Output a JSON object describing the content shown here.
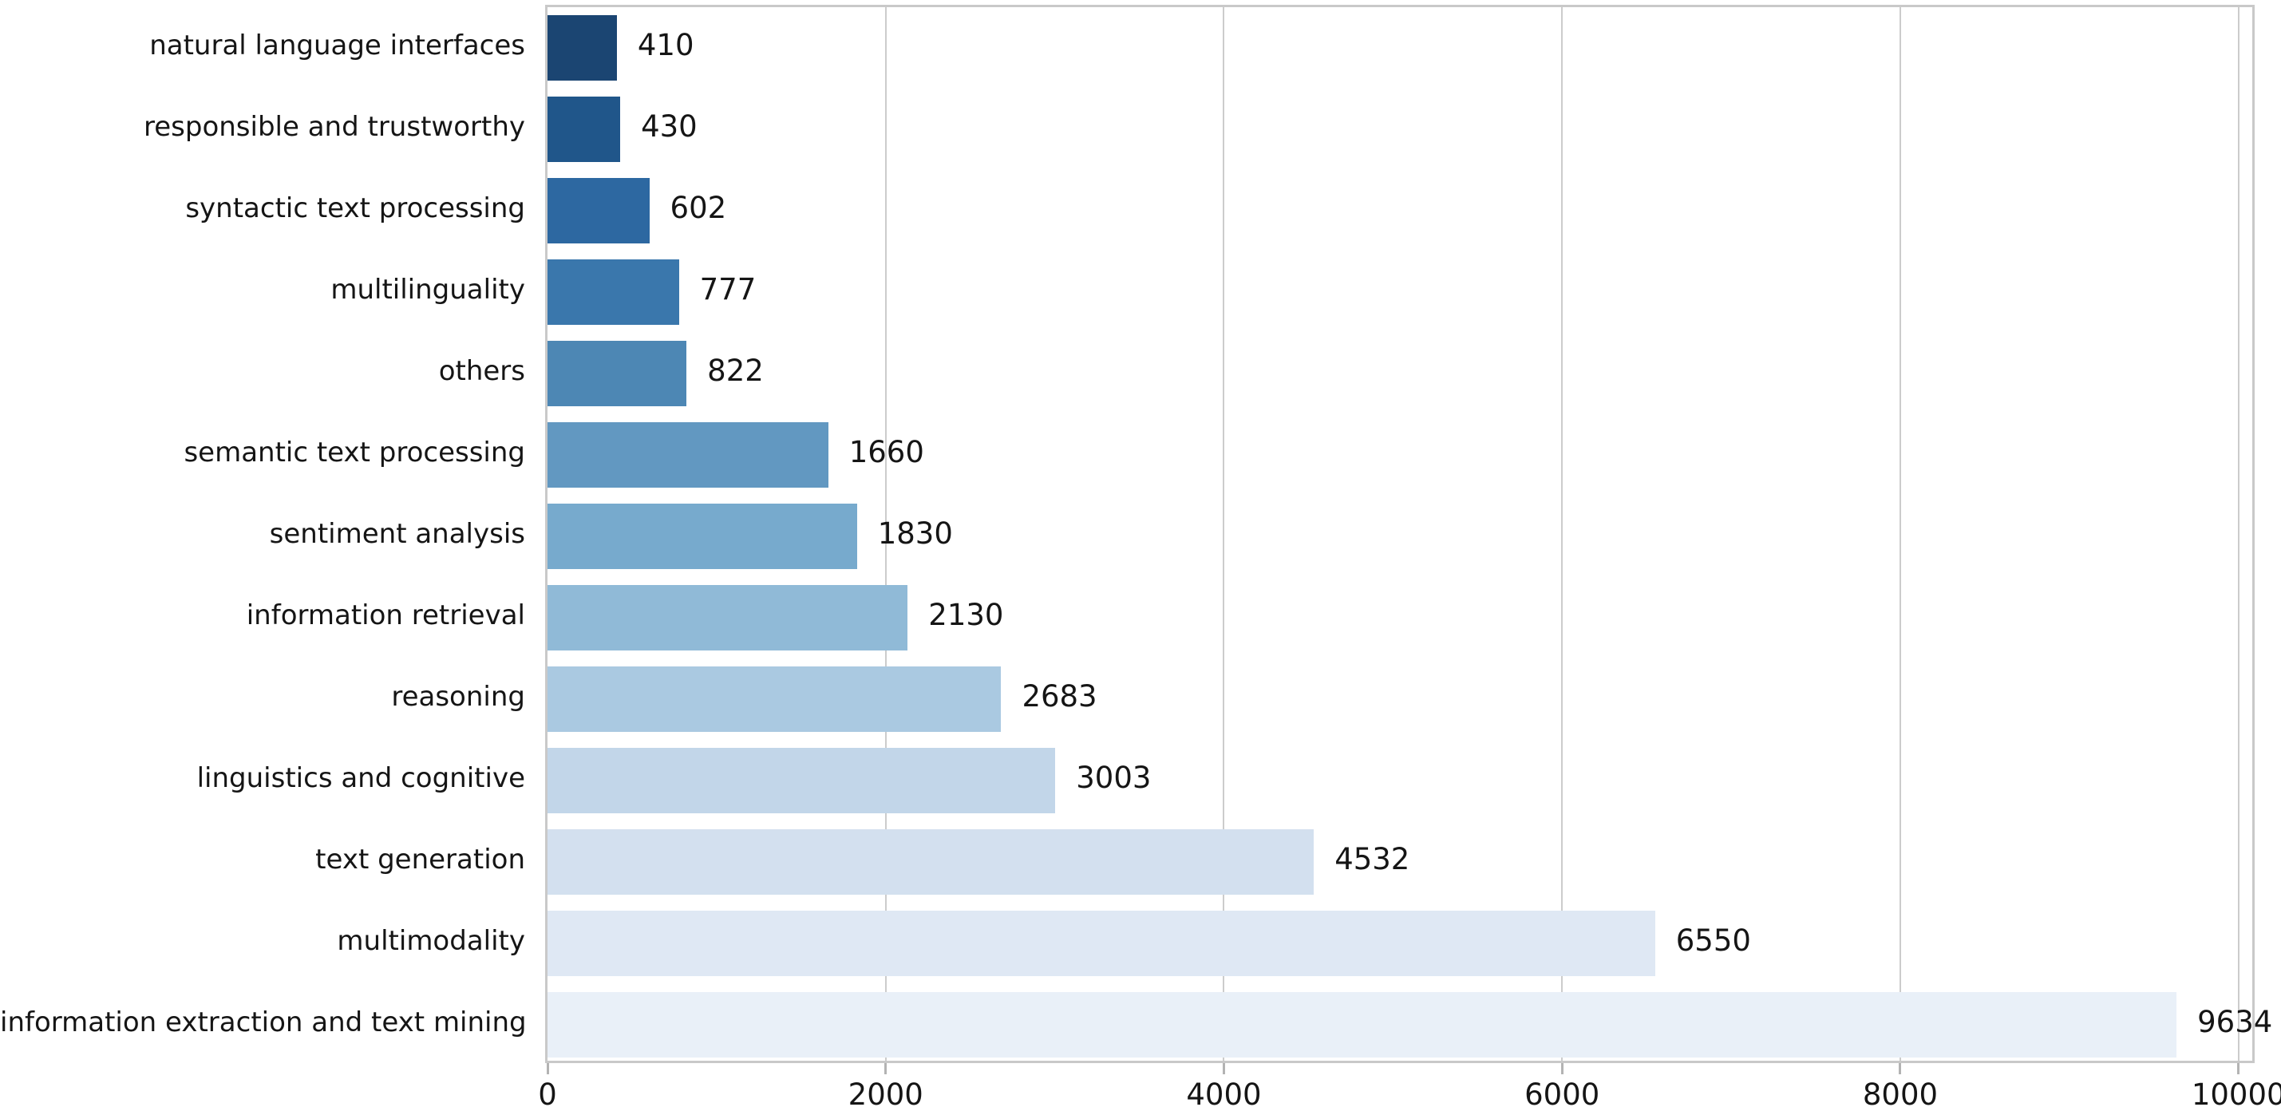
{
  "chart_data": {
    "type": "bar",
    "orientation": "horizontal",
    "title": "",
    "xlabel": "",
    "ylabel": "",
    "grid": true,
    "legend": null,
    "xlim": [
      0,
      10110
    ],
    "xticks": [
      0,
      2000,
      4000,
      6000,
      8000,
      10000
    ],
    "xtick_labels": [
      "0",
      "2000",
      "4000",
      "6000",
      "8000",
      "10000"
    ],
    "categories": [
      "natural language interfaces",
      "responsible and trustworthy",
      "syntactic text processing",
      "multilinguality",
      "others",
      "semantic text processing",
      "sentiment analysis",
      "information retrieval",
      "reasoning",
      "linguistics and cognitive",
      "text generation",
      "multimodality",
      "information extraction and text mining"
    ],
    "values": [
      410,
      430,
      602,
      777,
      822,
      1660,
      1830,
      2130,
      2683,
      3003,
      4532,
      6550,
      9634
    ],
    "value_labels": [
      "410",
      "430",
      "602",
      "777",
      "822",
      "1660",
      "1830",
      "2130",
      "2683",
      "3003",
      "4532",
      "6550",
      "9634"
    ],
    "bar_colors": [
      "#1b4572",
      "#20568a",
      "#2d68a1",
      "#3a77ac",
      "#4d87b4",
      "#6298c1",
      "#77aacd",
      "#90bad7",
      "#aac9e1",
      "#c2d6e9",
      "#d3e0ef",
      "#dfe8f4",
      "#e9f0f8"
    ],
    "colors": {
      "background": "#ffffff",
      "gridline": "#cccccc",
      "spine": "#c9c9c9",
      "tick_mark": "#b3b3b3",
      "text": "#151515"
    }
  }
}
